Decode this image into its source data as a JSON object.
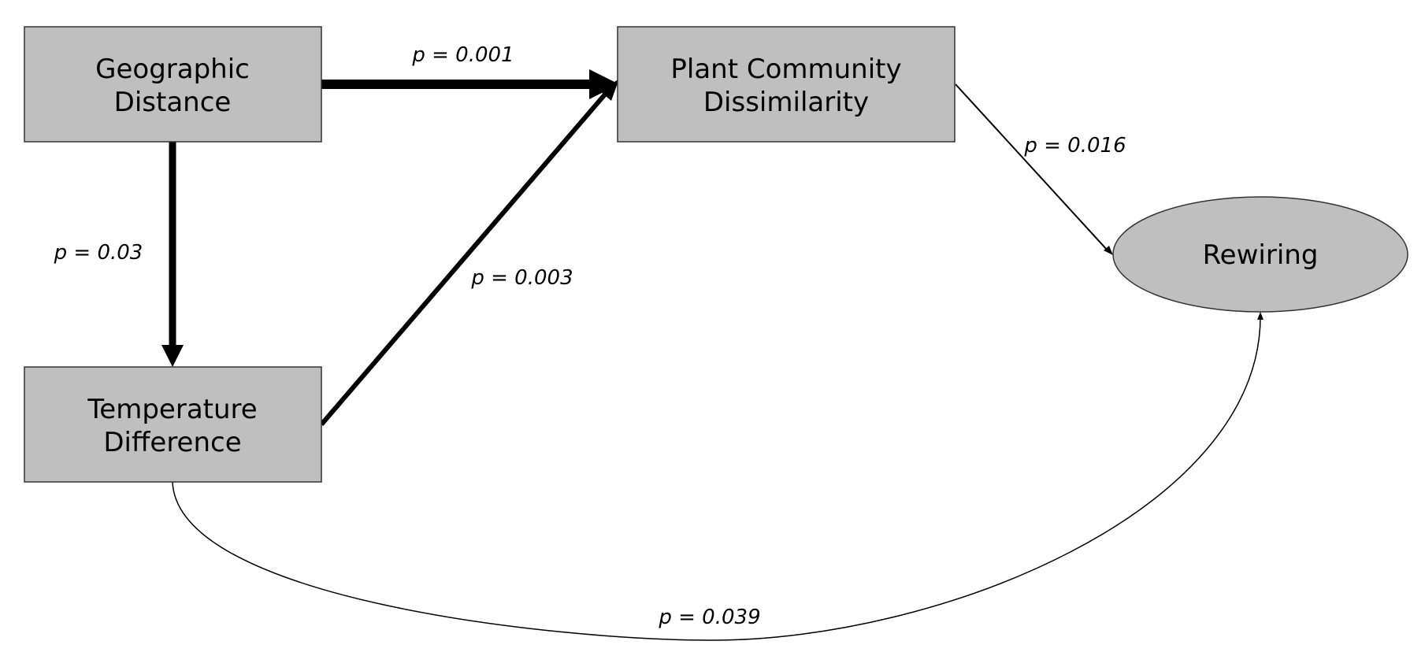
{
  "colors": {
    "node_fill": "#bfbfbf",
    "node_stroke": "#333333",
    "edge": "#000000",
    "background": "#ffffff"
  },
  "nodes": {
    "geographic_distance": {
      "line1": "Geographic",
      "line2": "Distance"
    },
    "plant_community": {
      "line1": "Plant Community",
      "line2": "Dissimilarity"
    },
    "temperature_difference": {
      "line1": "Temperature",
      "line2": "Difference"
    },
    "rewiring": {
      "label": "Rewiring"
    }
  },
  "edges": {
    "geo_to_plant": {
      "label": "p = 0.001"
    },
    "geo_to_temp": {
      "label": "p = 0.03"
    },
    "temp_to_plant": {
      "label": "p = 0.003"
    },
    "plant_to_rewiring": {
      "label": "p = 0.016"
    },
    "temp_to_rewiring": {
      "label": "p = 0.039"
    }
  }
}
